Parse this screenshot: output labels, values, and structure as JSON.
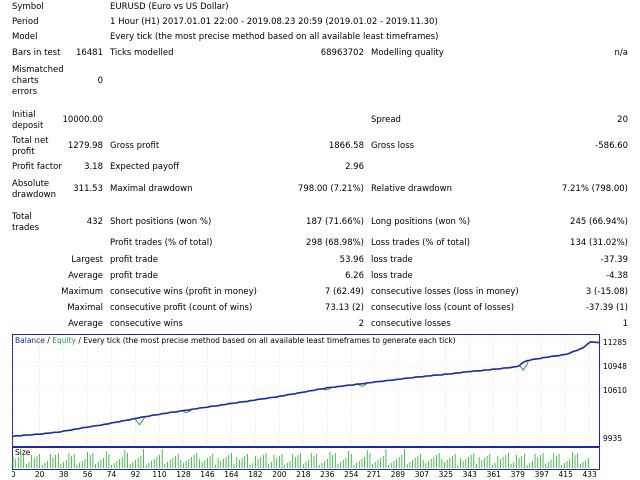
{
  "report": {
    "symbol_label": "Symbol",
    "symbol_value": "EURUSD (Euro vs US Dollar)",
    "period_label": "Period",
    "period_value": "1 Hour (H1) 2017.01.01 22:00 - 2019.08.23 20:59 (2019.01.02 - 2019.11.30)",
    "model_label": "Model",
    "model_value": "Every tick (the most precise method based on all available least timeframes)",
    "bars_label": "Bars in test",
    "bars_value": "16481",
    "ticks_label": "Ticks modelled",
    "ticks_value": "68963702",
    "quality_label": "Modelling quality",
    "quality_value": "n/a",
    "mismatch_label_1": "Mismatched",
    "mismatch_label_2": "charts",
    "mismatch_label_3": "errors",
    "mismatch_value": "0",
    "deposit_label_1": "Initial",
    "deposit_label_2": "deposit",
    "deposit_value": "10000.00",
    "spread_label": "Spread",
    "spread_value": "20",
    "netprofit_label_1": "Total net",
    "netprofit_label_2": "profit",
    "netprofit_value": "1279.98",
    "grossprofit_label": "Gross profit",
    "grossprofit_value": "1866.58",
    "grossloss_label": "Gross loss",
    "grossloss_value": "-586.60",
    "pf_label": "Profit factor",
    "pf_value": "3.18",
    "payoff_label": "Expected payoff",
    "payoff_value": "2.96",
    "absdd_label_1": "Absolute",
    "absdd_label_2": "drawdown",
    "absdd_value": "311.53",
    "maxdd_label": "Maximal drawdown",
    "maxdd_value": "798.00 (7.21%)",
    "reldd_label": "Relative drawdown",
    "reldd_value": "7.21% (798.00)",
    "trades_label_1": "Total",
    "trades_label_2": "trades",
    "trades_value": "432",
    "short_label": "Short positions (won %)",
    "short_value": "187 (71.66%)",
    "long_label": "Long positions (won %)",
    "long_value": "245 (66.94%)",
    "profittrades_label": "Profit trades (% of total)",
    "profittrades_value": "298 (68.98%)",
    "losstrades_label": "Loss trades (% of total)",
    "losstrades_value": "134 (31.02%)",
    "largest_label": "Largest",
    "largest_profit_label": "profit trade",
    "largest_profit_value": "53.96",
    "largest_loss_label": "loss trade",
    "largest_loss_value": "-37.39",
    "average_label": "Average",
    "average_profit_label": "profit trade",
    "average_profit_value": "6.26",
    "average_loss_label": "loss trade",
    "average_loss_value": "-4.38",
    "maximum_label": "Maximum",
    "max_cons_wins_label": "consecutive wins (profit in money)",
    "max_cons_wins_value": "7 (62.49)",
    "max_cons_losses_label": "consecutive losses (loss in money)",
    "max_cons_losses_value": "3 (-15.08)",
    "maximal_label": "Maximal",
    "maximal_profit_label": "consecutive profit (count of wins)",
    "maximal_profit_value": "73.13 (2)",
    "maximal_loss_label": "consecutive loss (count of losses)",
    "maximal_loss_value": "-37.39 (1)",
    "average2_label": "Average",
    "avg_cons_wins_label": "consecutive wins",
    "avg_cons_wins_value": "2",
    "avg_cons_losses_label": "consecutive losses",
    "avg_cons_losses_value": "1"
  },
  "chart_data": {
    "type": "line",
    "legend": {
      "balance": "Balance",
      "sep": " / ",
      "equity": "Equity",
      "rest": " / Every tick (the most precise method based on all available least timeframes to generate each tick)"
    },
    "size_label": "Size",
    "ylim": [
      9935,
      11285
    ],
    "y_ticks": [
      11285,
      10948,
      10610,
      9935
    ],
    "x_ticks": [
      0,
      20,
      38,
      56,
      74,
      92,
      110,
      128,
      146,
      164,
      182,
      200,
      218,
      236,
      254,
      271,
      289,
      307,
      325,
      343,
      361,
      379,
      397,
      415,
      433
    ],
    "xlim": [
      0,
      440
    ],
    "balance": [
      [
        0,
        9960
      ],
      [
        10,
        9975
      ],
      [
        20,
        9990
      ],
      [
        35,
        10020
      ],
      [
        50,
        10070
      ],
      [
        70,
        10130
      ],
      [
        92,
        10210
      ],
      [
        110,
        10270
      ],
      [
        128,
        10320
      ],
      [
        146,
        10370
      ],
      [
        164,
        10420
      ],
      [
        182,
        10470
      ],
      [
        200,
        10520
      ],
      [
        218,
        10580
      ],
      [
        236,
        10640
      ],
      [
        254,
        10680
      ],
      [
        271,
        10720
      ],
      [
        289,
        10760
      ],
      [
        307,
        10800
      ],
      [
        325,
        10830
      ],
      [
        343,
        10870
      ],
      [
        361,
        10900
      ],
      [
        379,
        10940
      ],
      [
        385,
        11020
      ],
      [
        397,
        11060
      ],
      [
        415,
        11110
      ],
      [
        428,
        11200
      ],
      [
        433,
        11285
      ],
      [
        440,
        11280
      ]
    ],
    "equity_dips": [
      [
        95,
        10120
      ],
      [
        130,
        10290
      ],
      [
        172,
        10440
      ],
      [
        235,
        10610
      ],
      [
        262,
        10660
      ],
      [
        383,
        10890
      ]
    ],
    "colors": {
      "balance": "#1c2aa3",
      "equity": "#2aa83a",
      "volume": "#22b022",
      "grid": "#c8c8c8",
      "border": "#1c2aa3"
    }
  }
}
